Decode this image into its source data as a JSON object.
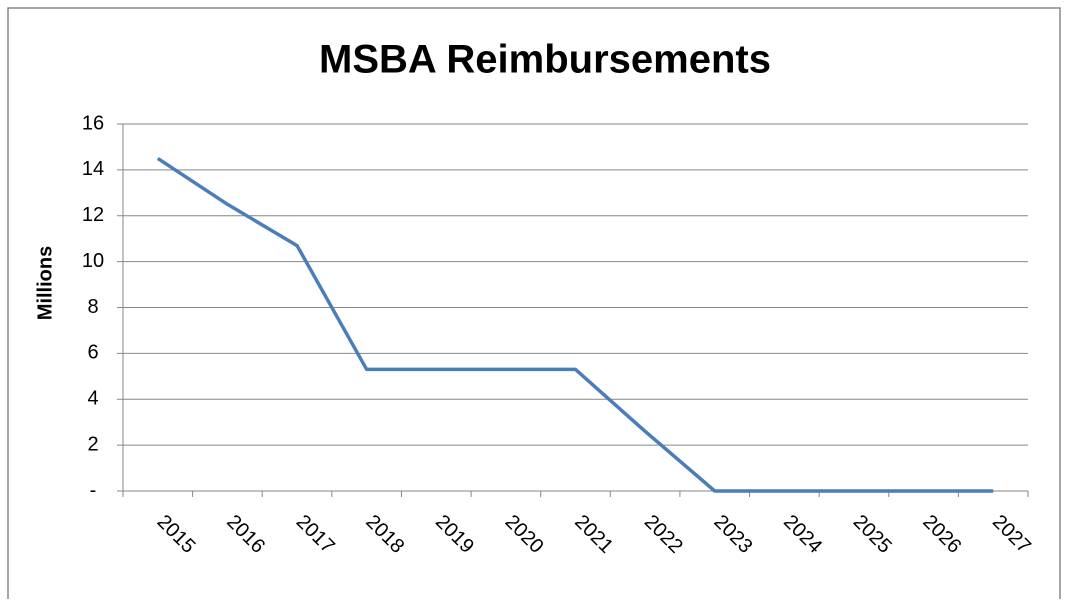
{
  "chart_data": {
    "type": "line",
    "title": "MSBA Reimbursements",
    "y_label": "Millions",
    "categories": [
      "2015",
      "2016",
      "2017",
      "2018",
      "2019",
      "2020",
      "2021",
      "2022",
      "2023",
      "2024",
      "2025",
      "2026",
      "2027"
    ],
    "series": [
      {
        "name": "Reimbursements",
        "color": "#4a7ebb",
        "values": [
          14.5,
          12.5,
          10.7,
          5.3,
          5.3,
          5.3,
          5.3,
          2.6,
          0,
          0,
          0,
          0,
          0
        ]
      }
    ],
    "ylim": [
      0,
      16
    ],
    "yticks": [
      {
        "value": 0,
        "label": "-"
      },
      2,
      4,
      6,
      8,
      10,
      12,
      14,
      16
    ],
    "grid": true,
    "legend": false
  }
}
